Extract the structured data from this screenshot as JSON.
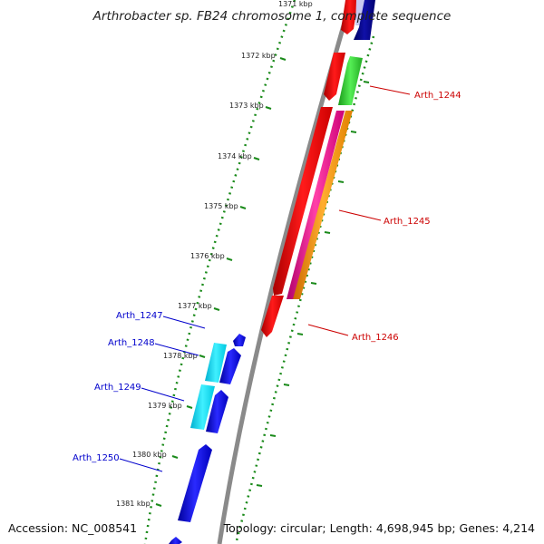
{
  "title": "Arthrobacter sp. FB24 chromosome 1, complete sequence",
  "accession": "Accession: NC_008541",
  "topology": "Topology: circular; Length: 4,698,945 bp; Genes: 4,214",
  "tick_labels": [
    "1371 kbp",
    "1372 kbp",
    "1373 kbp",
    "1374 kbp",
    "1375 kbp",
    "1376 kbp",
    "1377 kbp",
    "1378 kbp",
    "1379 kbp",
    "1380 kbp",
    "1381 kbp"
  ],
  "gene_labels": {
    "arth_1244": "Arth_1244",
    "arth_1245": "Arth_1245",
    "arth_1246": "Arth_1246",
    "arth_1247": "Arth_1247",
    "arth_1248": "Arth_1248",
    "arth_1249": "Arth_1249",
    "arth_1250": "Arth_1250"
  },
  "colors": {
    "forward_label": "#cc0000",
    "reverse_label": "#0000cc",
    "backbone": "#888888",
    "tick": "#1a8a1a"
  }
}
